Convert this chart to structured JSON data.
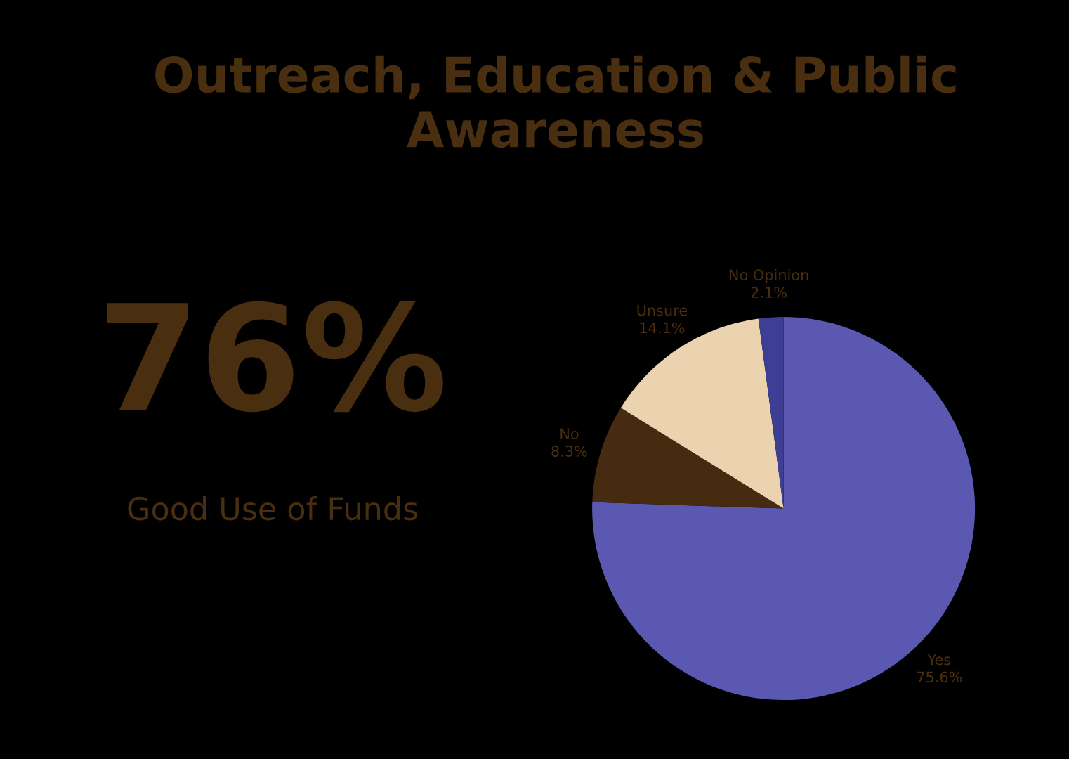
{
  "chart_data": {
    "type": "pie",
    "title": "Outreach, Education & Public Awareness",
    "categories": [
      "Yes",
      "No",
      "Unsure",
      "No Opinion"
    ],
    "values": [
      75.6,
      8.3,
      14.1,
      2.1
    ],
    "colors": [
      "#5a58b0",
      "#472b10",
      "#ebd3b0",
      "#3e3e94"
    ],
    "value_labels": [
      "75.6%",
      "8.3%",
      "14.1%",
      "2.1%"
    ],
    "annotations": [
      "76%",
      "Good Use of Funds"
    ],
    "legend": false
  }
}
